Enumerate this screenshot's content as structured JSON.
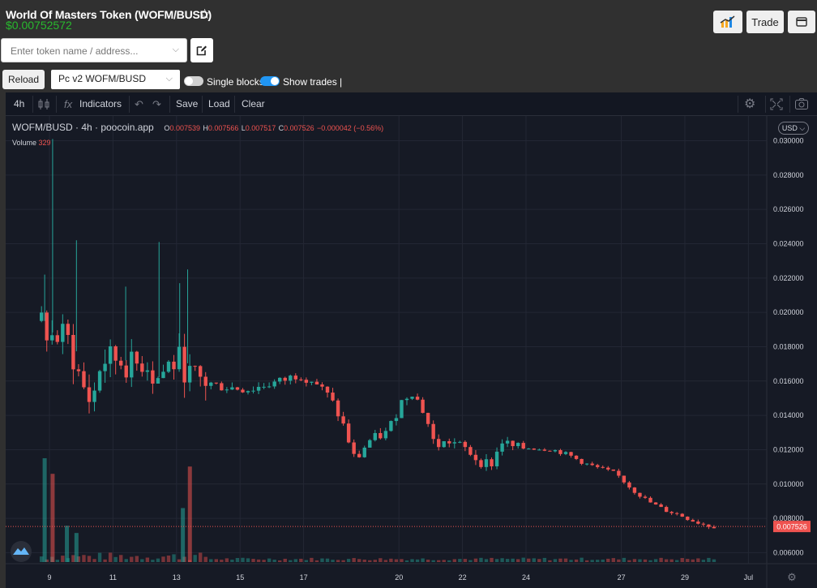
{
  "header": {
    "title": "World Of Masters Token (WOFM/BUSD)",
    "price": "$0.00752572",
    "trade_label": "Trade",
    "star_icon": "star-outline-icon",
    "chart_icon": "chart-icon",
    "wallet_icon": "wallet-icon"
  },
  "search": {
    "placeholder": "Enter token name / address...",
    "value": ""
  },
  "controls": {
    "reload_label": "Reload",
    "pair_selected": "Pc v2 WOFM/BUSD",
    "single_blocks_label": "Single blocks",
    "single_blocks_on": false,
    "show_trades_label": "Show trades |",
    "show_trades_on": true
  },
  "toolbar": {
    "interval": "4h",
    "indicators_label": "Indicators",
    "save_label": "Save",
    "load_label": "Load",
    "clear_label": "Clear"
  },
  "legend": {
    "symbol": "WOFM/BUSD · 4h · poocoin.app",
    "o_label": "O",
    "o_value": "0.007539",
    "h_label": "H",
    "h_value": "0.007566",
    "l_label": "L",
    "l_value": "0.007517",
    "c_label": "C",
    "c_value": "0.007526",
    "change": "−0.000042 (−0.56%)",
    "volume_label": "Volume",
    "volume_value": "329"
  },
  "currency_label": "USD",
  "last_price_label": "0.007526",
  "colors": {
    "up": "#26a69a",
    "down": "#ef5350",
    "background": "#161a25",
    "grid": "#232734"
  },
  "chart_data": {
    "type": "candlestick",
    "y_ticks": [
      "0.006000",
      "0.008000",
      "0.010000",
      "0.012000",
      "0.014000",
      "0.016000",
      "0.018000",
      "0.020000",
      "0.022000",
      "0.024000",
      "0.026000",
      "0.028000",
      "0.030000"
    ],
    "x_ticks": [
      "9",
      "11",
      "13",
      "15",
      "17",
      "20",
      "22",
      "24",
      "27",
      "29",
      "Jul"
    ],
    "ylim": [
      0.0055,
      0.0313
    ],
    "last_price": 0.007526,
    "anchors": [
      [
        8.9,
        0.0195
      ],
      [
        9.2,
        0.0185
      ],
      [
        9.7,
        0.0186
      ],
      [
        10.2,
        0.0157
      ],
      [
        10.5,
        0.0147
      ],
      [
        10.8,
        0.0172
      ],
      [
        11.3,
        0.0173
      ],
      [
        11.8,
        0.0168
      ],
      [
        12.2,
        0.0173
      ],
      [
        12.5,
        0.016
      ],
      [
        12.9,
        0.0169
      ],
      [
        13.3,
        0.0172
      ],
      [
        13.6,
        0.0162
      ],
      [
        14.0,
        0.016
      ],
      [
        14.5,
        0.0157
      ],
      [
        15.0,
        0.0156
      ],
      [
        15.5,
        0.0155
      ],
      [
        16.0,
        0.0158
      ],
      [
        16.5,
        0.016
      ],
      [
        17.0,
        0.0164
      ],
      [
        17.5,
        0.016
      ],
      [
        18.0,
        0.015
      ],
      [
        18.4,
        0.0135
      ],
      [
        18.8,
        0.0113
      ],
      [
        19.2,
        0.0125
      ],
      [
        19.8,
        0.013
      ],
      [
        20.3,
        0.015
      ],
      [
        20.6,
        0.0154
      ],
      [
        21.0,
        0.014
      ],
      [
        21.3,
        0.0122
      ],
      [
        21.8,
        0.0125
      ],
      [
        22.3,
        0.012
      ],
      [
        22.7,
        0.0113
      ],
      [
        23.1,
        0.0112
      ],
      [
        23.4,
        0.0125
      ],
      [
        23.8,
        0.0121
      ],
      [
        24.3,
        0.0121
      ],
      [
        25.0,
        0.012
      ],
      [
        25.5,
        0.0117
      ],
      [
        26.0,
        0.0112
      ],
      [
        26.5,
        0.0109
      ],
      [
        27.0,
        0.0106
      ],
      [
        27.5,
        0.0097
      ],
      [
        28.0,
        0.009
      ],
      [
        28.5,
        0.0085
      ],
      [
        29.0,
        0.0082
      ],
      [
        29.5,
        0.0078
      ],
      [
        30.0,
        0.007526
      ]
    ],
    "spikes": [
      {
        "day": 8.85,
        "high": 0.0222
      },
      {
        "day": 9.1,
        "high": 0.0301
      },
      {
        "day": 9.85,
        "high": 0.0242
      },
      {
        "day": 11.4,
        "high": 0.0215
      },
      {
        "day": 12.45,
        "high": 0.0241
      },
      {
        "day": 13.1,
        "high": 0.0217
      },
      {
        "day": 13.35,
        "high": 0.0225
      }
    ],
    "volume_spikes": [
      {
        "day": 8.85,
        "rel": 1.0,
        "dir": "up"
      },
      {
        "day": 9.1,
        "rel": 0.85,
        "dir": "down"
      },
      {
        "day": 9.55,
        "rel": 0.35,
        "dir": "up"
      },
      {
        "day": 9.85,
        "rel": 0.28,
        "dir": "up"
      },
      {
        "day": 13.2,
        "rel": 0.52,
        "dir": "up"
      },
      {
        "day": 13.42,
        "rel": 0.92,
        "dir": "down"
      }
    ]
  }
}
